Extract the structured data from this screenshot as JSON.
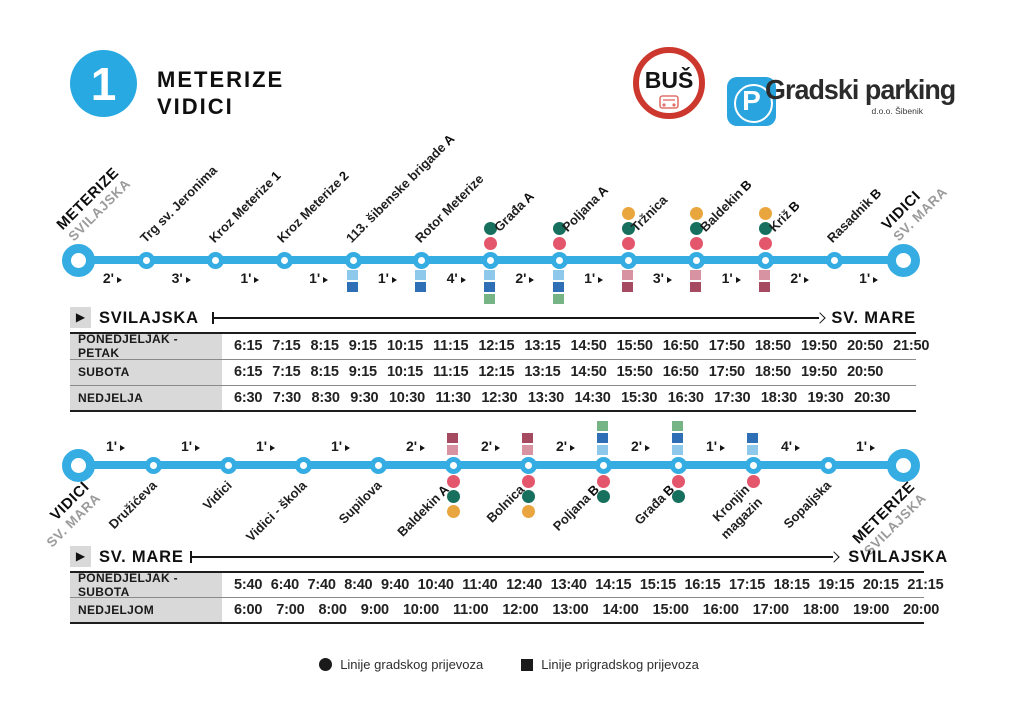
{
  "header": {
    "route_number": "1",
    "title_line1": "METERIZE",
    "title_line2": "VIDICI",
    "bus_logo_text": "BUŠ",
    "parking_icon_letter": "P",
    "parking_logo_text": "Gradski parking",
    "parking_logo_sub": "d.o.o. Šibenik"
  },
  "colors": {
    "route_blue": "#35ade3",
    "badge_blue": "#29a9e1",
    "parking_blue": "#2aa4de",
    "bus_logo_red": "#cd382e",
    "row_bg": "#d9d9d9",
    "terminal_sub_gray": "#9b9b9b",
    "marker": {
      "teal": "#17705d",
      "red": "#e4566b",
      "yellow": "#eaa63e",
      "lightblue": "#8ec9eb",
      "darkblue": "#2f6fb6",
      "green": "#76b385",
      "pink": "#d893a3",
      "darkred": "#a54a60"
    }
  },
  "routes": [
    {
      "name": "outbound",
      "stops": [
        {
          "name": "METERIZE",
          "sub": "SVILAJSKA",
          "terminal": true
        },
        {
          "name": "Trg sv. Jeronima"
        },
        {
          "name": "Kroz Meterize",
          "suffix": "1"
        },
        {
          "name": "Kroz Meterize",
          "suffix": "2"
        },
        {
          "name": "113. šibenske brigade",
          "suffix": "A",
          "squares": [
            "lightblue",
            "darkblue"
          ]
        },
        {
          "name": "Rotor Meterize",
          "squares": [
            "lightblue",
            "darkblue"
          ]
        },
        {
          "name": "Građa",
          "suffix": "A",
          "dots": [
            "teal",
            "red"
          ],
          "squares": [
            "lightblue",
            "darkblue",
            "green"
          ]
        },
        {
          "name": "Poljana",
          "suffix": "A",
          "dots": [
            "teal",
            "red"
          ],
          "squares": [
            "lightblue",
            "darkblue",
            "green"
          ]
        },
        {
          "name": "Tržnica",
          "dots": [
            "yellow",
            "teal",
            "red"
          ],
          "squares": [
            "pink",
            "darkred"
          ]
        },
        {
          "name": "Baldekin",
          "suffix": "B",
          "dots": [
            "yellow",
            "teal",
            "red"
          ],
          "squares": [
            "pink",
            "darkred"
          ]
        },
        {
          "name": "Križ",
          "suffix": "B",
          "dots": [
            "yellow",
            "teal",
            "red"
          ],
          "squares": [
            "pink",
            "darkred"
          ]
        },
        {
          "name": "Rasadnik",
          "suffix": "B"
        },
        {
          "name": "VIDICI",
          "sub": "SV. MARA",
          "terminal": true
        }
      ],
      "segment_minutes": [
        "2'",
        "3'",
        "1'",
        "1'",
        "1'",
        "4'",
        "2'",
        "1'",
        "3'",
        "1'",
        "2'",
        "1'"
      ]
    },
    {
      "name": "return",
      "stops": [
        {
          "name": "VIDICI",
          "sub": "SV. MARA",
          "terminal": true
        },
        {
          "name": "Družićeva"
        },
        {
          "name": "Vidici"
        },
        {
          "name": "Vidici - škola"
        },
        {
          "name": "Supilova"
        },
        {
          "name": "Baldekin",
          "suffix": "A",
          "squares": [
            "darkred",
            "pink"
          ],
          "dots": [
            "red",
            "teal",
            "yellow"
          ]
        },
        {
          "name": "Bolnica",
          "squares": [
            "darkred",
            "pink"
          ],
          "dots": [
            "red",
            "teal",
            "yellow"
          ]
        },
        {
          "name": "Poljana",
          "suffix": "B",
          "squares": [
            "green",
            "darkblue",
            "lightblue"
          ],
          "dots": [
            "red",
            "teal"
          ]
        },
        {
          "name": "Građa",
          "suffix": "B",
          "squares": [
            "green",
            "darkblue",
            "lightblue"
          ],
          "dots": [
            "red",
            "teal"
          ]
        },
        {
          "name": "Kronjin",
          "name2": "magazin",
          "squares": [
            "darkblue",
            "lightblue"
          ],
          "dots": [
            "red"
          ]
        },
        {
          "name": "Sopaljska"
        },
        {
          "name": "METERIZE",
          "sub": "SVILAJSKA",
          "terminal": true
        }
      ],
      "segment_minutes": [
        "1'",
        "1'",
        "1'",
        "1'",
        "2'",
        "2'",
        "2'",
        "2'",
        "1'",
        "4'",
        "1'"
      ]
    }
  ],
  "timetables": [
    {
      "from": "SVILAJSKA",
      "to": "SV. MARE",
      "rows": [
        {
          "label": "PONEDJELJAK - PETAK",
          "times": [
            "6:15",
            "7:15",
            "8:15",
            "9:15",
            "10:15",
            "11:15",
            "12:15",
            "13:15",
            "14:50",
            "15:50",
            "16:50",
            "17:50",
            "18:50",
            "19:50",
            "20:50",
            "21:50"
          ]
        },
        {
          "label": "SUBOTA",
          "times": [
            "6:15",
            "7:15",
            "8:15",
            "9:15",
            "10:15",
            "11:15",
            "12:15",
            "13:15",
            "14:50",
            "15:50",
            "16:50",
            "17:50",
            "18:50",
            "19:50",
            "20:50"
          ]
        },
        {
          "label": "NEDJELJA",
          "times": [
            "6:30",
            "7:30",
            "8:30",
            "9:30",
            "10:30",
            "11:30",
            "12:30",
            "13:30",
            "14:30",
            "15:30",
            "16:30",
            "17:30",
            "18:30",
            "19:30",
            "20:30"
          ]
        }
      ]
    },
    {
      "from": "SV. MARE",
      "to": "SVILAJSKA",
      "rows": [
        {
          "label": "PONEDJELJAK - SUBOTA",
          "times": [
            "5:40",
            "6:40",
            "7:40",
            "8:40",
            "9:40",
            "10:40",
            "11:40",
            "12:40",
            "13:40",
            "14:15",
            "15:15",
            "16:15",
            "17:15",
            "18:15",
            "19:15",
            "20:15",
            "21:15"
          ]
        },
        {
          "label": "NEDJELJOM",
          "times": [
            "6:00",
            "7:00",
            "8:00",
            "9:00",
            "10:00",
            "11:00",
            "12:00",
            "13:00",
            "14:00",
            "15:00",
            "16:00",
            "17:00",
            "18:00",
            "19:00",
            "20:00"
          ]
        }
      ]
    }
  ],
  "legend": {
    "city_label": "Linije gradskog prijevoza",
    "suburban_label": "Linije prigradskog prijevoza"
  }
}
